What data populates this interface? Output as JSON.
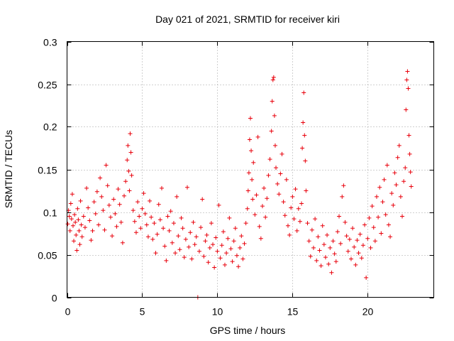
{
  "chart_data": {
    "type": "scatter",
    "title": "Day 021 of 2021, SRMTID for receiver kiri",
    "xlabel": "GPS time / hours",
    "ylabel": "SRMTID / TECUs",
    "xlim": [
      0,
      24.4
    ],
    "ylim": [
      0,
      0.3
    ],
    "xticks": [
      0,
      5,
      10,
      15,
      20
    ],
    "xtick_labels": [
      "0",
      "5",
      "10",
      "15",
      "20"
    ],
    "yticks": [
      0,
      0.05,
      0.1,
      0.15,
      0.2,
      0.25,
      0.3
    ],
    "ytick_labels": [
      "0",
      "0.05",
      "0.1",
      "0.15",
      "0.2",
      "0.25",
      "0.3"
    ],
    "grid": true,
    "marker": "+",
    "color": "#e8000b",
    "series": [
      {
        "name": "SRMTID",
        "points": [
          [
            0.05,
            0.086
          ],
          [
            0.1,
            0.102
          ],
          [
            0.15,
            0.095
          ],
          [
            0.2,
            0.078
          ],
          [
            0.25,
            0.11
          ],
          [
            0.3,
            0.092
          ],
          [
            0.35,
            0.121
          ],
          [
            0.4,
            0.084
          ],
          [
            0.45,
            0.066
          ],
          [
            0.5,
            0.097
          ],
          [
            0.55,
            0.088
          ],
          [
            0.6,
            0.073
          ],
          [
            0.65,
            0.055
          ],
          [
            0.7,
            0.104
          ],
          [
            0.75,
            0.091
          ],
          [
            0.8,
            0.078
          ],
          [
            0.85,
            0.062
          ],
          [
            0.9,
            0.113
          ],
          [
            0.95,
            0.085
          ],
          [
            1.0,
            0.071
          ],
          [
            1.1,
            0.095
          ],
          [
            1.2,
            0.082
          ],
          [
            1.3,
            0.128
          ],
          [
            1.4,
            0.105
          ],
          [
            1.5,
            0.09
          ],
          [
            1.6,
            0.067
          ],
          [
            1.7,
            0.078
          ],
          [
            1.8,
            0.112
          ],
          [
            1.9,
            0.098
          ],
          [
            2.0,
            0.124
          ],
          [
            2.1,
            0.085
          ],
          [
            2.2,
            0.14
          ],
          [
            2.3,
            0.118
          ],
          [
            2.4,
            0.102
          ],
          [
            2.5,
            0.079
          ],
          [
            2.6,
            0.155
          ],
          [
            2.7,
            0.131
          ],
          [
            2.8,
            0.108
          ],
          [
            2.9,
            0.094
          ],
          [
            3.0,
            0.072
          ],
          [
            3.1,
            0.115
          ],
          [
            3.2,
            0.098
          ],
          [
            3.3,
            0.083
          ],
          [
            3.4,
            0.127
          ],
          [
            3.5,
            0.109
          ],
          [
            3.6,
            0.088
          ],
          [
            3.7,
            0.064
          ],
          [
            3.8,
            0.119
          ],
          [
            3.9,
            0.136
          ],
          [
            4.0,
            0.161
          ],
          [
            4.05,
            0.178
          ],
          [
            4.1,
            0.148
          ],
          [
            4.15,
            0.125
          ],
          [
            4.2,
            0.192
          ],
          [
            4.25,
            0.17
          ],
          [
            4.3,
            0.143
          ],
          [
            4.4,
            0.102
          ],
          [
            4.5,
            0.089
          ],
          [
            4.6,
            0.076
          ],
          [
            4.7,
            0.112
          ],
          [
            4.8,
            0.095
          ],
          [
            4.9,
            0.081
          ],
          [
            5.0,
            0.104
          ],
          [
            5.1,
            0.122
          ],
          [
            5.2,
            0.098
          ],
          [
            5.3,
            0.085
          ],
          [
            5.4,
            0.071
          ],
          [
            5.5,
            0.113
          ],
          [
            5.6,
            0.094
          ],
          [
            5.7,
            0.068
          ],
          [
            5.8,
            0.087
          ],
          [
            5.9,
            0.052
          ],
          [
            6.0,
            0.074
          ],
          [
            6.1,
            0.109
          ],
          [
            6.2,
            0.091
          ],
          [
            6.3,
            0.128
          ],
          [
            6.4,
            0.081
          ],
          [
            6.5,
            0.06
          ],
          [
            6.6,
            0.043
          ],
          [
            6.7,
            0.095
          ],
          [
            6.8,
            0.078
          ],
          [
            6.9,
            0.101
          ],
          [
            7.0,
            0.064
          ],
          [
            7.1,
            0.087
          ],
          [
            7.2,
            0.052
          ],
          [
            7.3,
            0.118
          ],
          [
            7.4,
            0.072
          ],
          [
            7.5,
            0.056
          ],
          [
            7.6,
            0.093
          ],
          [
            7.7,
            0.081
          ],
          [
            7.8,
            0.047
          ],
          [
            7.9,
            0.068
          ],
          [
            8.0,
            0.129
          ],
          [
            8.1,
            0.059
          ],
          [
            8.2,
            0.076
          ],
          [
            8.3,
            0.045
          ],
          [
            8.4,
            0.088
          ],
          [
            8.5,
            0.062
          ],
          [
            8.6,
            0.071
          ],
          [
            8.7,
            0.0
          ],
          [
            8.8,
            0.054
          ],
          [
            8.9,
            0.082
          ],
          [
            9.0,
            0.115
          ],
          [
            9.1,
            0.048
          ],
          [
            9.2,
            0.066
          ],
          [
            9.3,
            0.073
          ],
          [
            9.4,
            0.041
          ],
          [
            9.5,
            0.058
          ],
          [
            9.6,
            0.087
          ],
          [
            9.7,
            0.062
          ],
          [
            9.8,
            0.035
          ],
          [
            9.9,
            0.07
          ],
          [
            10.0,
            0.054
          ],
          [
            10.1,
            0.108
          ],
          [
            10.2,
            0.046
          ],
          [
            10.3,
            0.061
          ],
          [
            10.4,
            0.077
          ],
          [
            10.5,
            0.038
          ],
          [
            10.6,
            0.052
          ],
          [
            10.7,
            0.069
          ],
          [
            10.8,
            0.093
          ],
          [
            10.9,
            0.057
          ],
          [
            11.0,
            0.042
          ],
          [
            11.1,
            0.066
          ],
          [
            11.2,
            0.081
          ],
          [
            11.3,
            0.049
          ],
          [
            11.4,
            0.036
          ],
          [
            11.5,
            0.058
          ],
          [
            11.6,
            0.072
          ],
          [
            11.7,
            0.045
          ],
          [
            11.8,
            0.063
          ],
          [
            11.9,
            0.087
          ],
          [
            12.0,
            0.104
          ],
          [
            12.05,
            0.125
          ],
          [
            12.1,
            0.146
          ],
          [
            12.15,
            0.185
          ],
          [
            12.2,
            0.21
          ],
          [
            12.25,
            0.172
          ],
          [
            12.3,
            0.138
          ],
          [
            12.35,
            0.115
          ],
          [
            12.4,
            0.158
          ],
          [
            12.5,
            0.097
          ],
          [
            12.6,
            0.12
          ],
          [
            12.7,
            0.188
          ],
          [
            12.8,
            0.083
          ],
          [
            12.9,
            0.069
          ],
          [
            13.0,
            0.107
          ],
          [
            13.1,
            0.128
          ],
          [
            13.2,
            0.094
          ],
          [
            13.3,
            0.116
          ],
          [
            13.4,
            0.143
          ],
          [
            13.5,
            0.162
          ],
          [
            13.6,
            0.195
          ],
          [
            13.65,
            0.23
          ],
          [
            13.7,
            0.255
          ],
          [
            13.75,
            0.258
          ],
          [
            13.8,
            0.213
          ],
          [
            13.85,
            0.178
          ],
          [
            13.9,
            0.152
          ],
          [
            14.0,
            0.133
          ],
          [
            14.1,
            0.121
          ],
          [
            14.2,
            0.145
          ],
          [
            14.3,
            0.168
          ],
          [
            14.4,
            0.112
          ],
          [
            14.5,
            0.096
          ],
          [
            14.6,
            0.138
          ],
          [
            14.7,
            0.084
          ],
          [
            14.8,
            0.073
          ],
          [
            14.9,
            0.105
          ],
          [
            15.0,
            0.118
          ],
          [
            15.1,
            0.092
          ],
          [
            15.2,
            0.127
          ],
          [
            15.3,
            0.078
          ],
          [
            15.4,
            0.104
          ],
          [
            15.5,
            0.089
          ],
          [
            15.6,
            0.11
          ],
          [
            15.65,
            0.175
          ],
          [
            15.7,
            0.205
          ],
          [
            15.75,
            0.24
          ],
          [
            15.8,
            0.19
          ],
          [
            15.85,
            0.16
          ],
          [
            15.9,
            0.125
          ],
          [
            16.0,
            0.087
          ],
          [
            16.1,
            0.066
          ],
          [
            16.2,
            0.048
          ],
          [
            16.3,
            0.079
          ],
          [
            16.4,
            0.058
          ],
          [
            16.5,
            0.092
          ],
          [
            16.6,
            0.043
          ],
          [
            16.7,
            0.071
          ],
          [
            16.8,
            0.055
          ],
          [
            16.9,
            0.037
          ],
          [
            17.0,
            0.084
          ],
          [
            17.1,
            0.062
          ],
          [
            17.2,
            0.047
          ],
          [
            17.3,
            0.073
          ],
          [
            17.4,
            0.039
          ],
          [
            17.5,
            0.058
          ],
          [
            17.6,
            0.029
          ],
          [
            17.7,
            0.066
          ],
          [
            17.8,
            0.051
          ],
          [
            17.9,
            0.042
          ],
          [
            18.0,
            0.077
          ],
          [
            18.1,
            0.095
          ],
          [
            18.2,
            0.063
          ],
          [
            18.3,
            0.118
          ],
          [
            18.4,
            0.131
          ],
          [
            18.5,
            0.088
          ],
          [
            18.6,
            0.072
          ],
          [
            18.7,
            0.054
          ],
          [
            18.8,
            0.068
          ],
          [
            18.9,
            0.045
          ],
          [
            19.0,
            0.081
          ],
          [
            19.1,
            0.059
          ],
          [
            19.2,
            0.038
          ],
          [
            19.3,
            0.067
          ],
          [
            19.4,
            0.052
          ],
          [
            19.5,
            0.074
          ],
          [
            19.6,
            0.046
          ],
          [
            19.7,
            0.061
          ],
          [
            19.8,
            0.085
          ],
          [
            19.9,
            0.023
          ],
          [
            20.0,
            0.069
          ],
          [
            20.1,
            0.093
          ],
          [
            20.2,
            0.058
          ],
          [
            20.3,
            0.107
          ],
          [
            20.4,
            0.082
          ],
          [
            20.5,
            0.066
          ],
          [
            20.6,
            0.118
          ],
          [
            20.7,
            0.094
          ],
          [
            20.8,
            0.129
          ],
          [
            20.9,
            0.075
          ],
          [
            21.0,
            0.112
          ],
          [
            21.1,
            0.138
          ],
          [
            21.2,
            0.097
          ],
          [
            21.3,
            0.155
          ],
          [
            21.4,
            0.085
          ],
          [
            21.5,
            0.071
          ],
          [
            21.6,
            0.122
          ],
          [
            21.7,
            0.108
          ],
          [
            21.8,
            0.146
          ],
          [
            21.9,
            0.132
          ],
          [
            22.0,
            0.164
          ],
          [
            22.1,
            0.178
          ],
          [
            22.2,
            0.118
          ],
          [
            22.3,
            0.095
          ],
          [
            22.4,
            0.136
          ],
          [
            22.5,
            0.152
          ],
          [
            22.55,
            0.22
          ],
          [
            22.6,
            0.255
          ],
          [
            22.65,
            0.265
          ],
          [
            22.7,
            0.245
          ],
          [
            22.75,
            0.19
          ],
          [
            22.8,
            0.168
          ],
          [
            22.85,
            0.147
          ],
          [
            22.9,
            0.13
          ]
        ]
      }
    ]
  }
}
